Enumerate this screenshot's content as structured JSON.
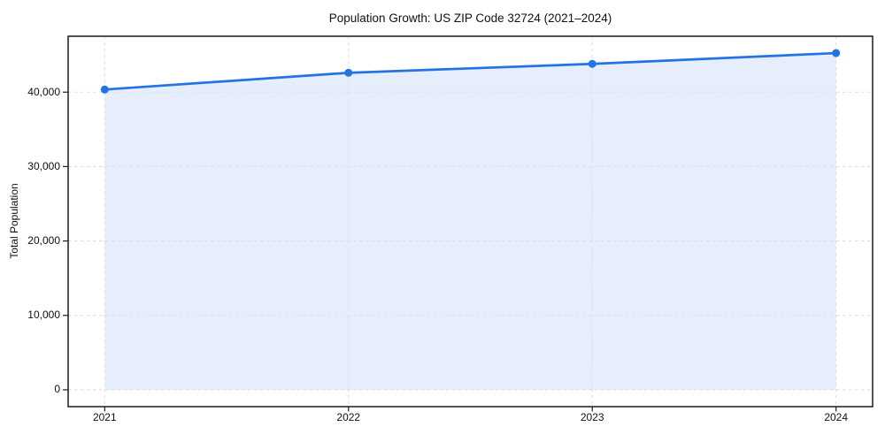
{
  "figure": {
    "background": "#ffffff"
  },
  "chart_data": {
    "type": "area",
    "title": "Population Growth: US ZIP Code 32724 (2021–2024)",
    "xlabel": "",
    "ylabel": "Total Population",
    "categories": [
      "2021",
      "2022",
      "2023",
      "2024"
    ],
    "series": [
      {
        "name": "Total Population",
        "values": [
          40350,
          42600,
          43800,
          45250
        ]
      }
    ],
    "baseline_value": 0,
    "yticks": [
      {
        "value": 0,
        "label": "0"
      },
      {
        "value": 10000,
        "label": "10,000"
      },
      {
        "value": 20000,
        "label": "20,000"
      },
      {
        "value": 30000,
        "label": "30,000"
      },
      {
        "value": 40000,
        "label": "40,000"
      }
    ],
    "xlim": [
      -0.15,
      3.15
    ],
    "ylim": [
      -2262.5,
      47512.5
    ],
    "grid": {
      "horizontal": true,
      "vertical": true,
      "style": "dashed"
    },
    "legend": {
      "visible": false
    },
    "marker": "circle",
    "colors": {
      "line": "#2373e3",
      "marker": "#2373e3",
      "fill": "#e7eefb",
      "grid": "#dfdfdf",
      "spine": "#1c1c1c",
      "text": "#111111",
      "background": "#ffffff"
    }
  }
}
